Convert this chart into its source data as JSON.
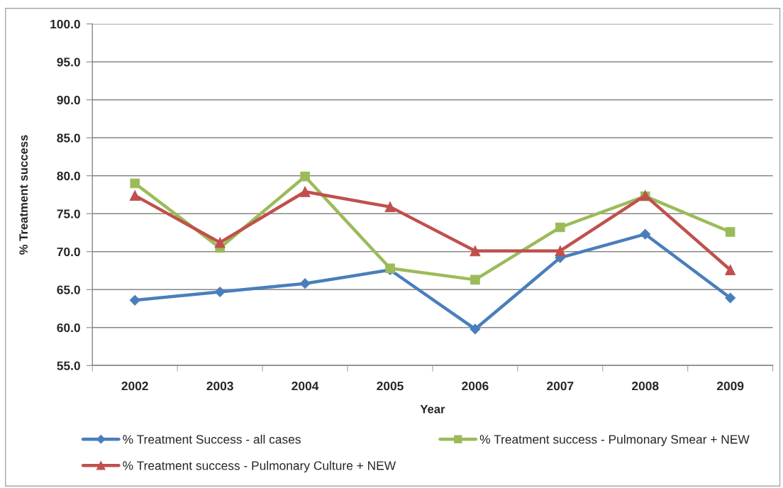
{
  "chart_data": {
    "type": "line",
    "xlabel": "Year",
    "ylabel": "% Treatment success",
    "categories": [
      "2002",
      "2003",
      "2004",
      "2005",
      "2006",
      "2007",
      "2008",
      "2009"
    ],
    "series": [
      {
        "name": "% Treatment Success - all cases",
        "color": "#4a7ebb",
        "marker": "diamond",
        "values": [
          63.6,
          64.7,
          65.8,
          67.6,
          59.8,
          69.2,
          72.3,
          63.9
        ]
      },
      {
        "name": "% Treatment success - Pulmonary Smear + NEW",
        "color": "#9bbb59",
        "marker": "square",
        "values": [
          79.0,
          70.5,
          79.9,
          67.8,
          66.3,
          73.2,
          77.3,
          72.6
        ]
      },
      {
        "name": "% Treatment success - Pulmonary Culture + NEW",
        "color": "#c0504d",
        "marker": "triangle",
        "values": [
          77.4,
          71.2,
          77.9,
          75.9,
          70.1,
          70.1,
          77.4,
          67.6
        ]
      }
    ],
    "ylim": [
      55,
      100
    ],
    "yticks": [
      {
        "value": 55,
        "label": "55.0"
      },
      {
        "value": 60,
        "label": "60.0"
      },
      {
        "value": 65,
        "label": "65.0"
      },
      {
        "value": 70,
        "label": "70.0"
      },
      {
        "value": 75,
        "label": "75.0"
      },
      {
        "value": 80,
        "label": "80.0"
      },
      {
        "value": 85,
        "label": "85.0"
      },
      {
        "value": 90,
        "label": "90.0"
      },
      {
        "value": 95,
        "label": "95.0"
      },
      {
        "value": 100,
        "label": "100.0"
      }
    ],
    "grid": "y",
    "legend": "bottom",
    "line_style": "solid"
  }
}
